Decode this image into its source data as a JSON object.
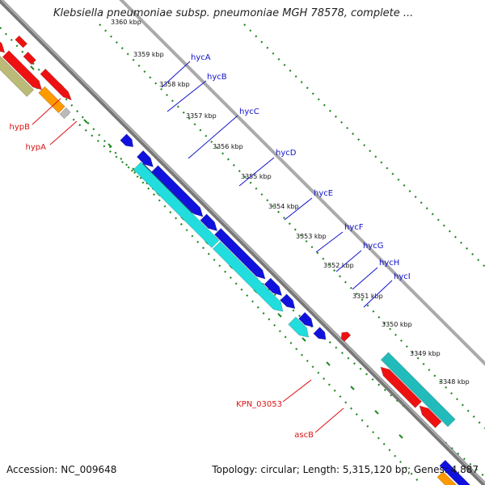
{
  "header": {
    "title": "Klebsiella pneumoniae subsp. pneumoniae MGH 78578, complete ..."
  },
  "footer": {
    "accession": "Accession: NC_009648",
    "summary": "Topology: circular; Length: 5,315,120 bp; Genes: 4,887"
  },
  "colors": {
    "backbone": "#888888",
    "tick": "#228822",
    "forward_label": "#1111cc",
    "reverse_label": "#dd1111",
    "gene_blue": "#1111dd",
    "gene_cyan": "#22dddd",
    "gene_red": "#ee1111",
    "gene_orange": "#ff9900",
    "gene_olive": "#bbbb77",
    "gene_teal": "#22bbbb",
    "gene_navy": "#333399",
    "gene_gray": "#bbbbbb"
  },
  "ticks": [
    {
      "label": "3360 kbp"
    },
    {
      "label": "3359 kbp"
    },
    {
      "label": "3358 kbp"
    },
    {
      "label": "3357 kbp"
    },
    {
      "label": "3356 kbp"
    },
    {
      "label": "3355 kbp"
    },
    {
      "label": "3354 kbp"
    },
    {
      "label": "3353 kbp"
    },
    {
      "label": "3352 kbp"
    },
    {
      "label": "3351 kbp"
    },
    {
      "label": "3350 kbp"
    },
    {
      "label": "3349 kbp"
    },
    {
      "label": "3348 kbp"
    }
  ],
  "gene_labels": [
    {
      "name": "hycA",
      "strand": "forward"
    },
    {
      "name": "hycB",
      "strand": "forward"
    },
    {
      "name": "hycC",
      "strand": "forward"
    },
    {
      "name": "hycD",
      "strand": "forward"
    },
    {
      "name": "hycE",
      "strand": "forward"
    },
    {
      "name": "hycF",
      "strand": "forward"
    },
    {
      "name": "hycG",
      "strand": "forward"
    },
    {
      "name": "hycH",
      "strand": "forward"
    },
    {
      "name": "hycI",
      "strand": "forward"
    },
    {
      "name": "hypB",
      "strand": "reverse"
    },
    {
      "name": "hypA",
      "strand": "reverse"
    },
    {
      "name": "KPN_03053",
      "strand": "reverse"
    },
    {
      "name": "ascB",
      "strand": "reverse"
    }
  ]
}
